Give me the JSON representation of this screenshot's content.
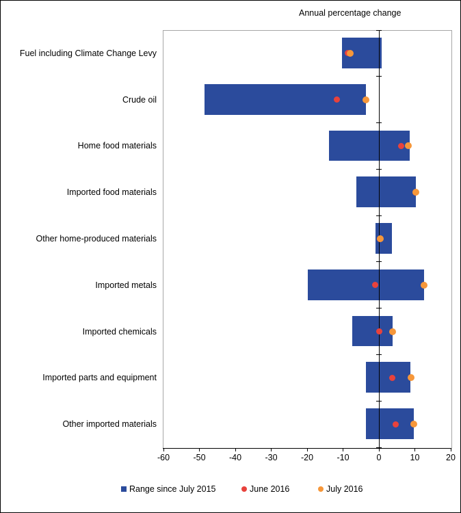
{
  "title": "Annual percentage change",
  "colors": {
    "bar": "#2b4b9c",
    "june": "#e8423c",
    "july": "#f6973a",
    "plot_border": "#a6a6a6",
    "axis": "#000000"
  },
  "legend": [
    {
      "label": "Range since July 2015",
      "marker": "square",
      "color": "#2b4b9c"
    },
    {
      "label": "June 2016",
      "marker": "circle",
      "color": "#e8423c"
    },
    {
      "label": "July 2016",
      "marker": "circle",
      "color": "#f6973a"
    }
  ],
  "chart_data": {
    "type": "bar",
    "orientation": "horizontal",
    "title": "Annual percentage change",
    "categories": [
      "Fuel including Climate Change Levy",
      "Crude oil",
      "Home food materials",
      "Imported food materials",
      "Other home-produced materials",
      "Imported metals",
      "Imported chemicals",
      "Imported parts and equipment",
      "Other imported materials"
    ],
    "series": [
      {
        "name": "Range since July 2015",
        "type": "range-bar",
        "ranges": [
          [
            -10.2,
            0.8
          ],
          [
            -48.6,
            -3.6
          ],
          [
            -13.9,
            8.5
          ],
          [
            -6.2,
            10.3
          ],
          [
            -1.0,
            3.7
          ],
          [
            -19.8,
            12.6
          ],
          [
            -7.5,
            3.9
          ],
          [
            -3.7,
            8.8
          ],
          [
            -3.6,
            9.7
          ]
        ]
      },
      {
        "name": "June 2016",
        "type": "scatter",
        "values": [
          -8.7,
          -11.8,
          6.2,
          10.2,
          0.2,
          -1.1,
          0.1,
          3.8,
          4.7
        ]
      },
      {
        "name": "July 2016",
        "type": "scatter",
        "values": [
          -8.0,
          -3.7,
          8.2,
          10.3,
          0.3,
          12.6,
          3.9,
          9.0,
          9.8
        ]
      }
    ],
    "xlim": [
      -60,
      20
    ],
    "xticks": [
      -60,
      -50,
      -40,
      -30,
      -20,
      -10,
      0,
      10,
      20
    ],
    "grid": false,
    "legend_position": "bottom"
  }
}
